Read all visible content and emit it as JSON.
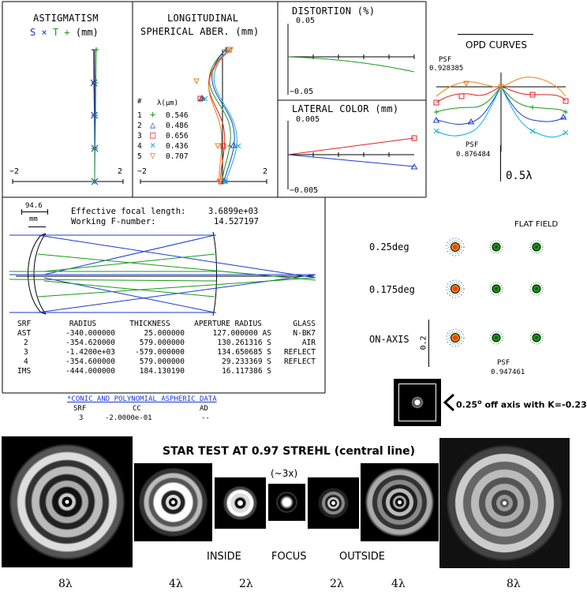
{
  "astigmatism": {
    "title": "ASTIGMATISM",
    "subtitle_s": "S",
    "subtitle_x": "×",
    "subtitle_t": "T",
    "subtitle_plus": "+",
    "subtitle_unit": "(mm)",
    "tick_left": "−2",
    "tick_right": "2"
  },
  "spherical": {
    "title_line1": "LONGITUDINAL",
    "title_line2": "SPHERICAL ABER. (mm)",
    "tick_left": "−2",
    "tick_right": "2",
    "legend_header_num": "#",
    "legend_header_unit": "λ(μm)",
    "legend": [
      {
        "num": "1",
        "symbol": "+",
        "wavelength": "0.546",
        "color": "#1a9a1a"
      },
      {
        "num": "2",
        "symbol": "△",
        "wavelength": "0.486",
        "color": "#1a3ad0"
      },
      {
        "num": "3",
        "symbol": "□",
        "wavelength": "0.656",
        "color": "#e02020"
      },
      {
        "num": "4",
        "symbol": "×",
        "wavelength": "0.436",
        "color": "#10b0d0"
      },
      {
        "num": "5",
        "symbol": "▽",
        "wavelength": "0.707",
        "color": "#f08010"
      }
    ]
  },
  "distortion": {
    "title": "DISTORTION (%)",
    "y_top": "0.05",
    "y_bottom": "−0.05"
  },
  "lateral_color": {
    "title": "LATERAL COLOR (mm)",
    "y_top": "0.005",
    "y_bottom": "−0.005"
  },
  "opd": {
    "title": "OPD CURVES",
    "psf_top_label": "PSF",
    "psf_top_value": "0.928385",
    "psf_bottom_label": "PSF",
    "psf_bottom_value": "0.876484",
    "scale": "0.5λ"
  },
  "layout_info": {
    "scale_value": "94.6",
    "scale_unit": "mm",
    "efl_label": "Effective focal length:",
    "efl_value": "3.6899e+03",
    "fnum_label": "Working F-number:",
    "fnum_value": "14.527197"
  },
  "surface_table": {
    "headers": [
      "SRF",
      "RADIUS",
      "THICKNESS",
      "APERTURE RADIUS",
      "GLASS"
    ],
    "rows": [
      [
        "AST",
        "-340.000000",
        "25.000000",
        "127.000000 AS",
        "N-BK7"
      ],
      [
        "2",
        "-354.620000",
        "579.000000",
        "130.261316 S",
        "AIR"
      ],
      [
        "3",
        "-1.4200e+03",
        "-579.000000",
        "134.650685 S",
        "REFLECT"
      ],
      [
        "4",
        "-354.600000",
        "579.000000",
        "29.233369 S",
        "REFLECT"
      ],
      [
        "IMS",
        "-444.000000",
        "184.130190",
        "16.117386 S",
        ""
      ]
    ]
  },
  "conic": {
    "title": "*CONIC AND POLYNOMIAL ASPHERIC DATA",
    "headers": [
      "SRF",
      "CC",
      "AD"
    ],
    "row": [
      "3",
      "-2.0000e-01",
      "--"
    ]
  },
  "spot": {
    "flat_field": "FLAT FIELD",
    "rows": [
      "0.25deg",
      "0.175deg",
      "ON-AXIS"
    ],
    "scale": "0.2",
    "psf_label": "PSF",
    "psf_value": "0.947461"
  },
  "offaxis_note": {
    "prefix": "0.25",
    "degree": "o",
    "suffix": " off axis with K=-0.23"
  },
  "star_test": {
    "title": "STAR TEST AT 0.97 STREHL (central line)",
    "zoom_note": "(~3x)",
    "inside": "INSIDE",
    "focus": "FOCUS",
    "outside": "OUTSIDE",
    "defocus_labels": [
      "8λ",
      "4λ",
      "2λ",
      "2λ",
      "4λ",
      "8λ"
    ]
  }
}
